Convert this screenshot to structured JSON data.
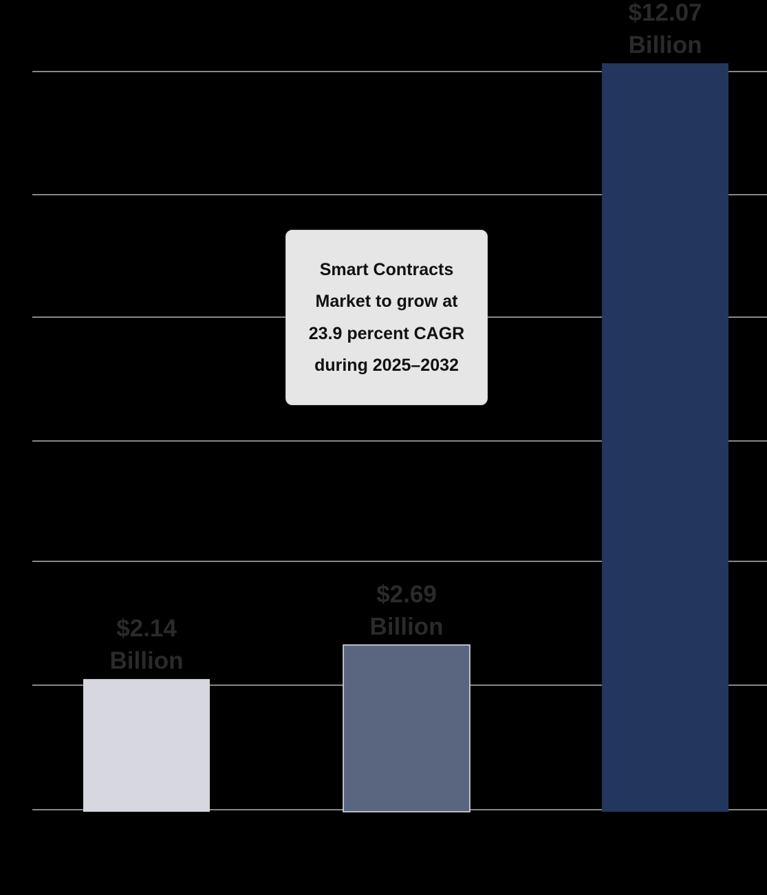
{
  "chart_data": {
    "type": "bar",
    "categories": [
      "",
      "",
      ""
    ],
    "values": [
      2.14,
      2.69,
      12.07
    ],
    "data_labels": [
      [
        "$2.14",
        "Billion"
      ],
      [
        "$2.69",
        "Billion"
      ],
      [
        "$12.07",
        "Billion"
      ]
    ],
    "unit": "Billion USD",
    "colors": [
      "#d6d7df",
      "#5a6680",
      "#23365e"
    ],
    "label_color": "#2a2a2a",
    "grid": true,
    "grid_color": "#b5b5b5",
    "background": "#000000",
    "ylim": [
      0,
      12.07
    ],
    "annotation": "Smart Contracts Market to grow at 23.9 percent CAGR during 2025–2032"
  }
}
